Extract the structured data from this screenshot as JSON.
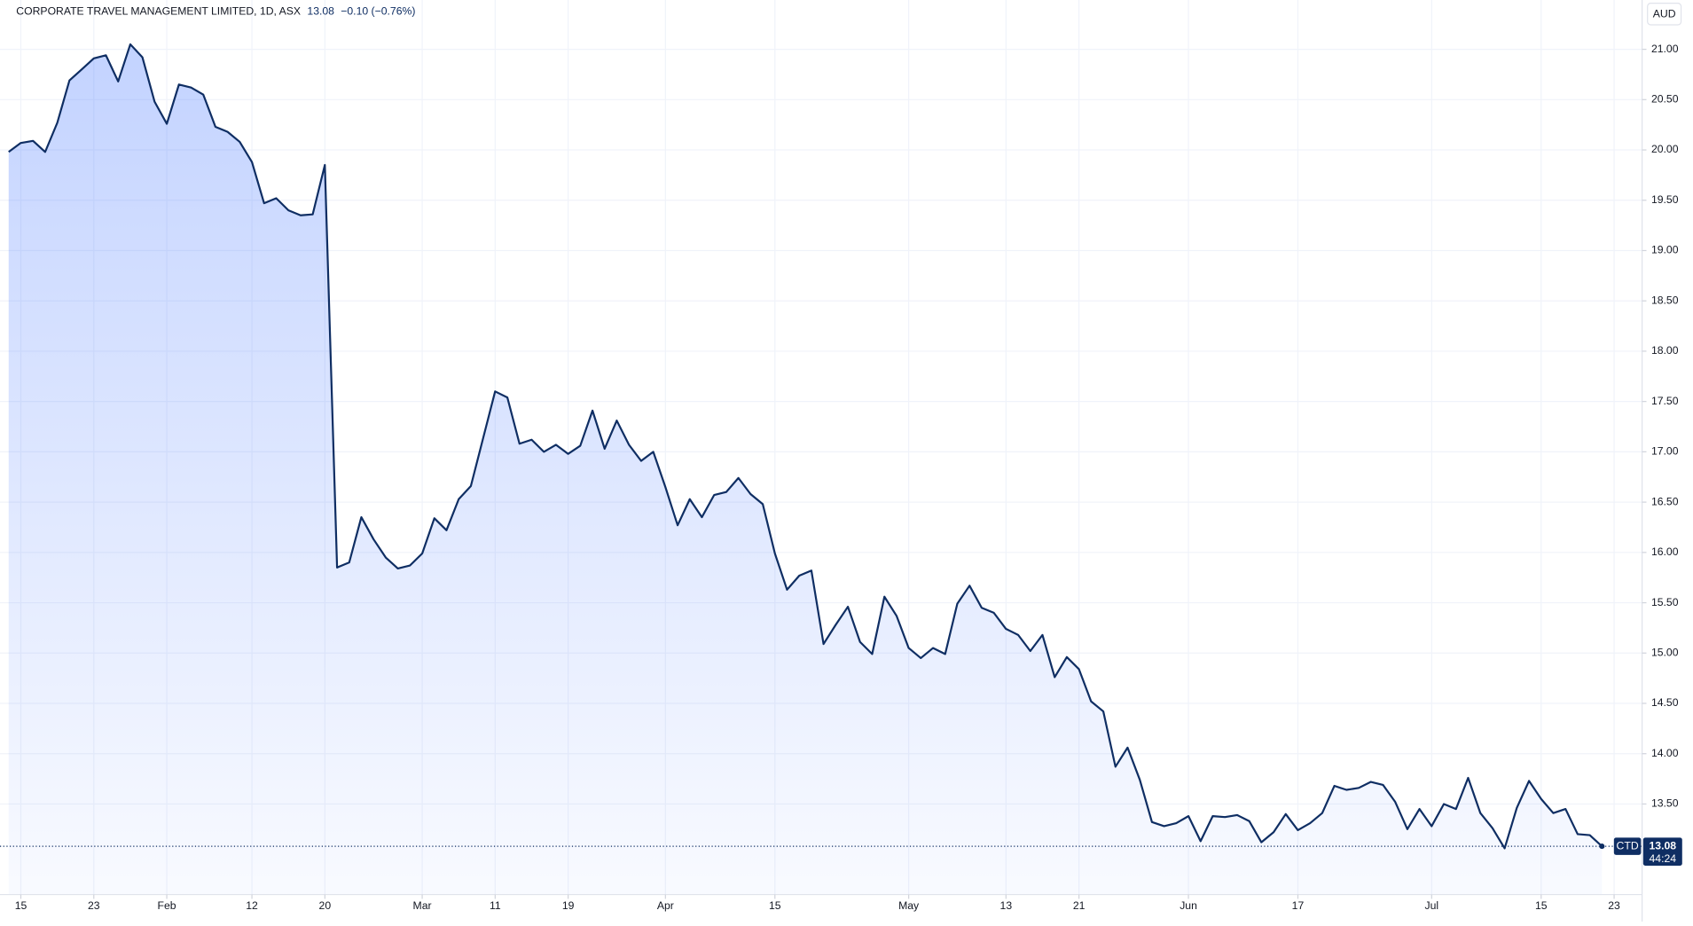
{
  "chart_data": {
    "type": "line",
    "title": "CORPORATE TRAVEL MANAGEMENT LIMITED, 1D, ASX",
    "change": "−0.10 (−0.76%)",
    "currency": "AUD",
    "symbol": "CTD",
    "countdown": "44:24",
    "color": "#0f2e63",
    "grid": true,
    "values": [
      19.98,
      20.07,
      20.09,
      19.98,
      20.27,
      20.69,
      20.8,
      20.91,
      20.94,
      20.68,
      21.05,
      20.92,
      20.48,
      20.26,
      20.65,
      20.62,
      20.55,
      20.23,
      20.18,
      20.08,
      19.88,
      19.47,
      19.52,
      19.4,
      19.35,
      19.36,
      19.85,
      15.85,
      15.9,
      16.35,
      16.13,
      15.95,
      15.84,
      15.87,
      15.99,
      16.34,
      16.22,
      16.53,
      16.66,
      17.13,
      17.6,
      17.54,
      17.08,
      17.12,
      17.0,
      17.07,
      16.98,
      17.06,
      17.41,
      17.03,
      17.31,
      17.07,
      16.91,
      17.0,
      16.65,
      16.27,
      16.53,
      16.35,
      16.57,
      16.6,
      16.74,
      16.58,
      16.48,
      15.99,
      15.63,
      15.77,
      15.82,
      15.09,
      15.28,
      15.46,
      15.11,
      14.99,
      15.56,
      15.37,
      15.05,
      14.95,
      15.05,
      14.99,
      15.49,
      15.67,
      15.45,
      15.4,
      15.24,
      15.18,
      15.02,
      15.18,
      14.76,
      14.96,
      14.84,
      14.52,
      14.42,
      13.87,
      14.06,
      13.74,
      13.32,
      13.28,
      13.31,
      13.38,
      13.13,
      13.38,
      13.37,
      13.39,
      13.33,
      13.12,
      13.22,
      13.4,
      13.24,
      13.31,
      13.41,
      13.68,
      13.64,
      13.66,
      13.72,
      13.69,
      13.52,
      13.25,
      13.45,
      13.28,
      13.5,
      13.45,
      13.76,
      13.41,
      13.26,
      13.06,
      13.46,
      13.73,
      13.55,
      13.41,
      13.45,
      13.2,
      13.19,
      13.08
    ],
    "xlim": [
      0,
      134.3
    ],
    "xticks": [
      {
        "value": 1,
        "label": "15"
      },
      {
        "value": 7,
        "label": "23"
      },
      {
        "value": 13,
        "label": "Feb"
      },
      {
        "value": 20,
        "label": "12"
      },
      {
        "value": 26,
        "label": "20"
      },
      {
        "value": 34,
        "label": "Mar"
      },
      {
        "value": 40,
        "label": "11"
      },
      {
        "value": 46,
        "label": "19"
      },
      {
        "value": 54,
        "label": "Apr"
      },
      {
        "value": 63,
        "label": "15"
      },
      {
        "value": 74,
        "label": "May"
      },
      {
        "value": 82,
        "label": "13"
      },
      {
        "value": 88,
        "label": "21"
      },
      {
        "value": 97,
        "label": "Jun"
      },
      {
        "value": 106,
        "label": "17"
      },
      {
        "value": 117,
        "label": "Jul"
      },
      {
        "value": 126,
        "label": "15"
      },
      {
        "value": 132,
        "label": "23"
      }
    ],
    "ylim": [
      12.6,
      21.49
    ],
    "yticks": [
      {
        "value": 13.5,
        "label": "13.50"
      },
      {
        "value": 14,
        "label": "14.00"
      },
      {
        "value": 14.5,
        "label": "14.50"
      },
      {
        "value": 15,
        "label": "15.00"
      },
      {
        "value": 15.5,
        "label": "15.50"
      },
      {
        "value": 16,
        "label": "16.00"
      },
      {
        "value": 16.5,
        "label": "16.50"
      },
      {
        "value": 17,
        "label": "17.00"
      },
      {
        "value": 17.5,
        "label": "17.50"
      },
      {
        "value": 18,
        "label": "18.00"
      },
      {
        "value": 18.5,
        "label": "18.50"
      },
      {
        "value": 19,
        "label": "19.00"
      },
      {
        "value": 19.5,
        "label": "19.50"
      },
      {
        "value": 20,
        "label": "20.00"
      },
      {
        "value": 20.5,
        "label": "20.50"
      },
      {
        "value": 21,
        "label": "21.00"
      }
    ]
  }
}
